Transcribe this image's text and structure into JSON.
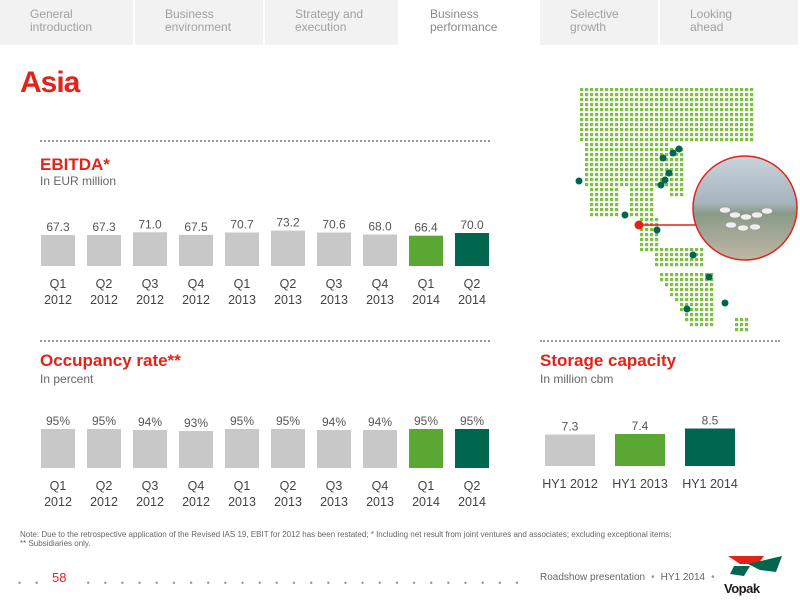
{
  "nav": {
    "tabs": [
      {
        "label": "General\nintroduction",
        "active": false
      },
      {
        "label": "Business\nenvironment",
        "active": false
      },
      {
        "label": "Strategy and\nexecution",
        "active": false
      },
      {
        "label": "Business\nperformance",
        "active": true
      },
      {
        "label": "Selective\ngrowth",
        "active": false
      },
      {
        "label": "Looking\nahead",
        "active": false
      }
    ]
  },
  "page": {
    "title": "Asia"
  },
  "colors": {
    "accent": "#e2231a",
    "bar_gray": "#c8c8c8",
    "bar_green": "#5aa833",
    "bar_dark_green": "#00664f"
  },
  "chart_data": [
    {
      "type": "bar",
      "title": "EBITDA*",
      "subtitle": "In EUR million",
      "categories": [
        "Q1\n2012",
        "Q2\n2012",
        "Q3\n2012",
        "Q4\n2012",
        "Q1\n2013",
        "Q2\n2013",
        "Q3\n2013",
        "Q4\n2013",
        "Q1\n2014",
        "Q2\n2014"
      ],
      "values": [
        67.3,
        67.3,
        71.0,
        67.5,
        70.7,
        73.2,
        70.6,
        68.0,
        66.4,
        70.0
      ],
      "value_labels": [
        "67.3",
        "67.3",
        "71.0",
        "67.5",
        "70.7",
        "73.2",
        "70.6",
        "68.0",
        "66.4",
        "70.0"
      ],
      "bar_colors": [
        "#c8c8c8",
        "#c8c8c8",
        "#c8c8c8",
        "#c8c8c8",
        "#c8c8c8",
        "#c8c8c8",
        "#c8c8c8",
        "#c8c8c8",
        "#5aa833",
        "#00664f"
      ]
    },
    {
      "type": "bar",
      "title": "Occupancy rate**",
      "subtitle": "In percent",
      "categories": [
        "Q1\n2012",
        "Q2\n2012",
        "Q3\n2012",
        "Q4\n2012",
        "Q1\n2013",
        "Q2\n2013",
        "Q3\n2013",
        "Q4\n2013",
        "Q1\n2014",
        "Q2\n2014"
      ],
      "values": [
        95,
        95,
        94,
        93,
        95,
        95,
        94,
        94,
        95,
        95
      ],
      "value_labels": [
        "95%",
        "95%",
        "94%",
        "93%",
        "95%",
        "95%",
        "94%",
        "94%",
        "95%",
        "95%"
      ],
      "bar_colors": [
        "#c8c8c8",
        "#c8c8c8",
        "#c8c8c8",
        "#c8c8c8",
        "#c8c8c8",
        "#c8c8c8",
        "#c8c8c8",
        "#c8c8c8",
        "#5aa833",
        "#00664f"
      ]
    },
    {
      "type": "bar",
      "title": "Storage capacity",
      "subtitle": "In million cbm",
      "categories": [
        "HY1 2012",
        "HY1 2013",
        "HY1 2014"
      ],
      "values": [
        7.3,
        7.4,
        8.5
      ],
      "value_labels": [
        "7.3",
        "7.4",
        "8.5"
      ],
      "bar_colors": [
        "#c8c8c8",
        "#5aa833",
        "#00664f"
      ]
    }
  ],
  "map": {
    "icon": "asia-terminal-map-icon",
    "dot_color": "#7dc143",
    "marker_color": "#00664f",
    "highlight_color": "#e2231a"
  },
  "note": "Note: Due to the retrospective application of the Revised IAS 19, EBIT for 2012 has been restated; * Including net result from joint ventures and associates; excluding exceptional items;\n** Subsidiaries only.",
  "footer": {
    "page_number": "58",
    "presentation": "Roadshow presentation",
    "period": "HY1 2014",
    "logo_text": "Vopak"
  }
}
